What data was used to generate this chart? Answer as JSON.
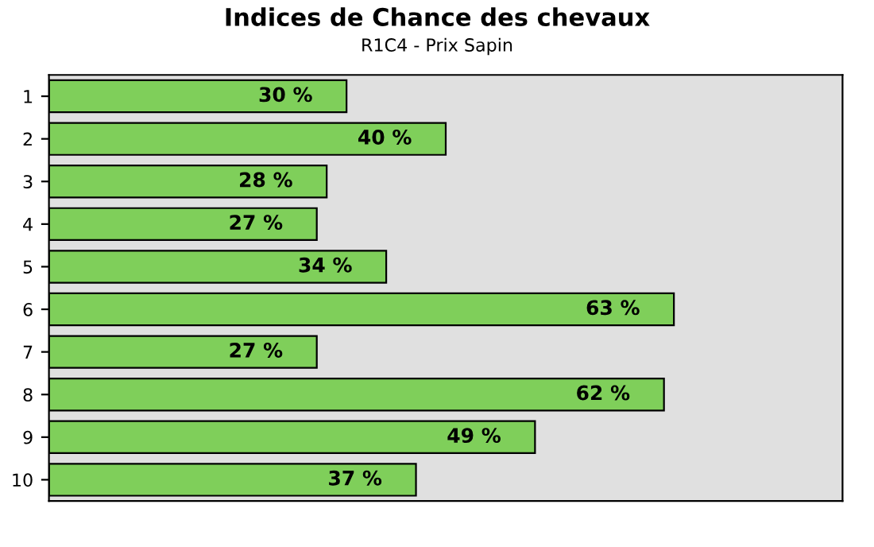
{
  "chart_data": {
    "type": "bar",
    "orientation": "horizontal",
    "title": "Indices de Chance des chevaux",
    "subtitle": "R1C4 - Prix Sapin",
    "categories": [
      "1",
      "2",
      "3",
      "4",
      "5",
      "6",
      "7",
      "8",
      "9",
      "10"
    ],
    "values": [
      30,
      40,
      28,
      27,
      34,
      63,
      27,
      62,
      49,
      37
    ],
    "value_labels": [
      "30 %",
      "40 %",
      "28 %",
      "27 %",
      "34 %",
      "63 %",
      "27 %",
      "62 %",
      "49 %",
      "37 %"
    ],
    "color": "#7fcf5a",
    "xlim": [
      0,
      80
    ],
    "tick_labels": "y",
    "grid": false,
    "legend": false
  }
}
